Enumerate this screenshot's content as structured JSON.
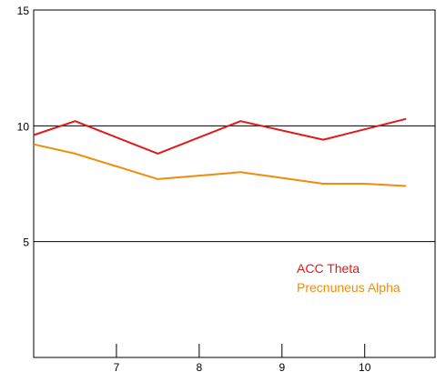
{
  "chart_data": {
    "type": "line",
    "title": "",
    "xlabel": "",
    "ylabel": "",
    "xlim": [
      6.0,
      10.85
    ],
    "ylim": [
      0,
      15
    ],
    "x_ticks": [
      7,
      8,
      9,
      10
    ],
    "y_ticks": [
      5,
      10,
      15
    ],
    "gridlines_y": [
      5,
      10
    ],
    "legend_position": "bottom-right, inside plot",
    "series": [
      {
        "name": "ACC Theta",
        "color": "#e0191b",
        "x": [
          6.0,
          6.5,
          7.5,
          8.5,
          9.5,
          10.5
        ],
        "y": [
          9.6,
          10.2,
          8.8,
          10.2,
          9.4,
          10.3
        ]
      },
      {
        "name": "Precnuneus Alpha",
        "color": "#f08c0a",
        "x": [
          6.0,
          6.5,
          7.5,
          8.5,
          9.5,
          10.0,
          10.5
        ],
        "y": [
          9.2,
          8.8,
          7.7,
          8.0,
          7.5,
          7.5,
          7.4
        ]
      }
    ]
  }
}
